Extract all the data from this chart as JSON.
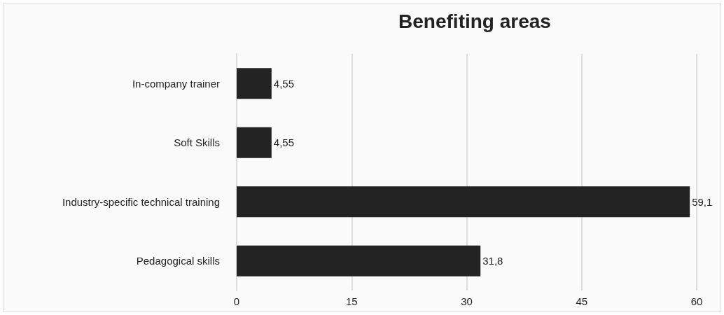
{
  "chart_data": {
    "type": "bar",
    "title": "Benefiting areas",
    "orientation": "horizontal",
    "categories": [
      "In-company trainer",
      "Soft Skills",
      "Industry-specific technical training",
      "Pedagogical skills"
    ],
    "values": [
      4.55,
      4.55,
      59.1,
      31.8
    ],
    "value_labels": [
      "4,55",
      "4,55",
      "59,1",
      "31,8"
    ],
    "color": "#232323",
    "xlim": [
      0,
      60
    ],
    "xticks": [
      0,
      15,
      30,
      45,
      60
    ],
    "grid": "x"
  }
}
